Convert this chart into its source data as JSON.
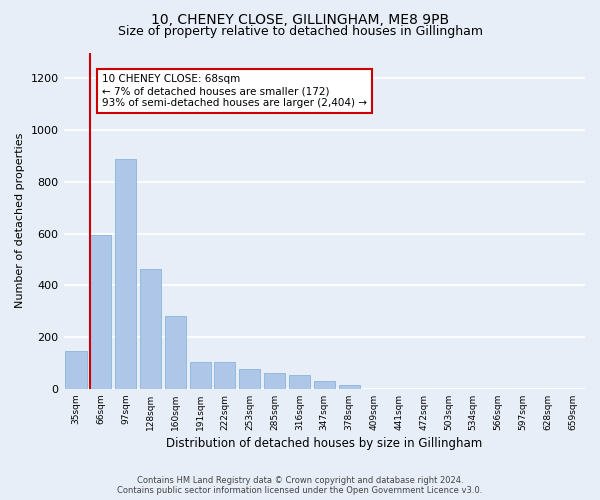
{
  "title1": "10, CHENEY CLOSE, GILLINGHAM, ME8 9PB",
  "title2": "Size of property relative to detached houses in Gillingham",
  "xlabel": "Distribution of detached houses by size in Gillingham",
  "ylabel": "Number of detached properties",
  "categories": [
    "35sqm",
    "66sqm",
    "97sqm",
    "128sqm",
    "160sqm",
    "191sqm",
    "222sqm",
    "253sqm",
    "285sqm",
    "316sqm",
    "347sqm",
    "378sqm",
    "409sqm",
    "441sqm",
    "472sqm",
    "503sqm",
    "534sqm",
    "566sqm",
    "597sqm",
    "628sqm",
    "659sqm"
  ],
  "values": [
    145,
    595,
    890,
    465,
    280,
    105,
    105,
    75,
    60,
    55,
    30,
    15,
    0,
    0,
    0,
    0,
    0,
    0,
    0,
    0,
    0
  ],
  "bar_color": "#aec6e8",
  "bar_edge_color": "#7aafd4",
  "highlight_color": "#cc0000",
  "annotation_box_color": "#ffffff",
  "annotation_border_color": "#cc0000",
  "annotation_text_line1": "10 CHENEY CLOSE: 68sqm",
  "annotation_text_line2": "← 7% of detached houses are smaller (172)",
  "annotation_text_line3": "93% of semi-detached houses are larger (2,404) →",
  "ylim": [
    0,
    1300
  ],
  "yticks": [
    0,
    200,
    400,
    600,
    800,
    1000,
    1200
  ],
  "footer1": "Contains HM Land Registry data © Crown copyright and database right 2024.",
  "footer2": "Contains public sector information licensed under the Open Government Licence v3.0.",
  "bg_color": "#e8eef8",
  "plot_bg_color": "#e8eef8",
  "grid_color": "#ffffff",
  "title1_fontsize": 10,
  "title2_fontsize": 9
}
